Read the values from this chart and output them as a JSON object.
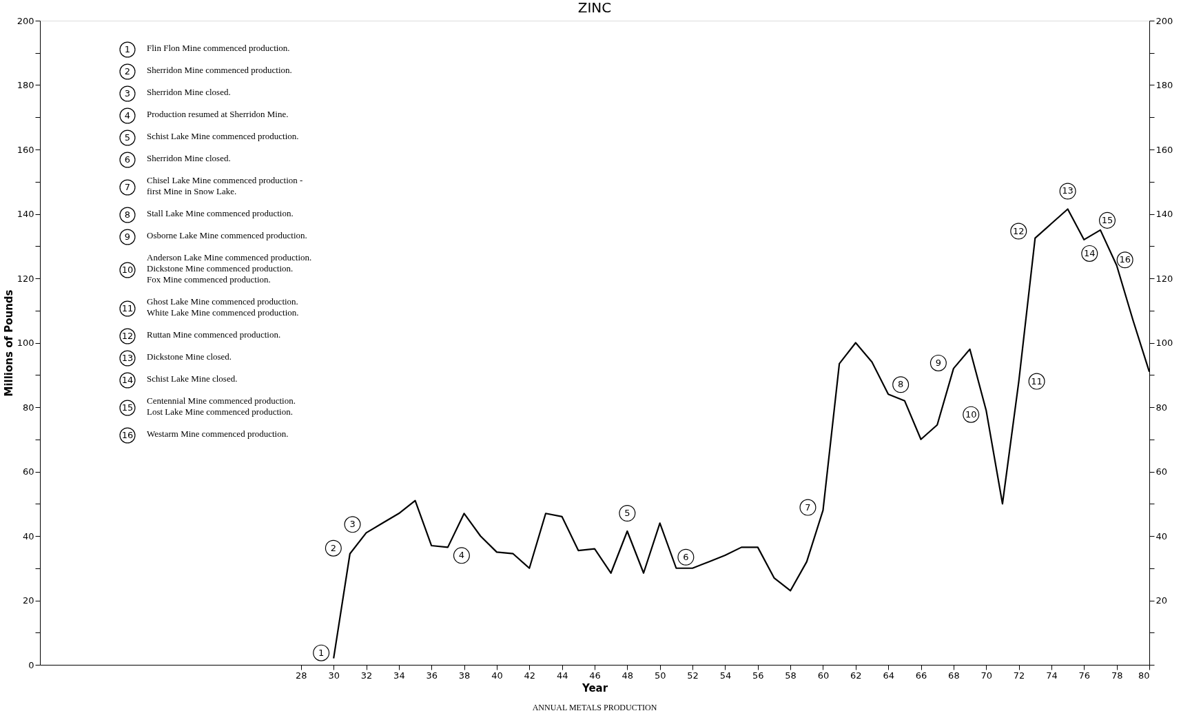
{
  "chart_data": {
    "type": "line",
    "title": "ZINC",
    "xlabel": "Year",
    "ylabel": "Millions of Pounds",
    "x": [
      30,
      31,
      32,
      33,
      34,
      35,
      36,
      37,
      38,
      39,
      40,
      41,
      42,
      43,
      44,
      45,
      46,
      47,
      48,
      49,
      50,
      51,
      52,
      53,
      54,
      55,
      56,
      57,
      58,
      59,
      60,
      61,
      62,
      63,
      64,
      65,
      66,
      67,
      68,
      69,
      70,
      71,
      72,
      73,
      74,
      75,
      76,
      77,
      78,
      79,
      80
    ],
    "series": [
      {
        "color": "#000000",
        "values": [
          2,
          34.5,
          41,
          44,
          47,
          51,
          37,
          36.5,
          47,
          40,
          35,
          34.5,
          30,
          47,
          46,
          35.5,
          36,
          28.5,
          41.5,
          28.5,
          44,
          30,
          30,
          32,
          34,
          36.5,
          36.5,
          27,
          23,
          32,
          48,
          93.5,
          100,
          94,
          84,
          82,
          70,
          74.5,
          92,
          98,
          79,
          50,
          88,
          132.5,
          137,
          141.5,
          132,
          135,
          124,
          107,
          91
        ]
      }
    ],
    "xlim": [
      12,
      80
    ],
    "xticks": [
      28,
      30,
      32,
      34,
      36,
      38,
      40,
      42,
      44,
      46,
      48,
      50,
      52,
      54,
      56,
      58,
      60,
      62,
      64,
      66,
      68,
      70,
      72,
      74,
      76,
      78,
      80
    ],
    "ylim": [
      0,
      200
    ],
    "yticks": [
      0,
      {
        "value": 10,
        "label": null
      },
      20,
      {
        "value": 30,
        "label": null
      },
      40,
      {
        "value": 50,
        "label": null
      },
      60,
      {
        "value": 70,
        "label": null
      },
      80,
      {
        "value": 90,
        "label": null
      },
      100,
      {
        "value": 110,
        "label": null
      },
      120,
      {
        "value": 130,
        "label": null
      },
      140,
      {
        "value": 150,
        "label": null
      },
      160,
      {
        "value": 170,
        "label": null
      },
      180,
      {
        "value": 190,
        "label": null
      },
      200
    ],
    "y2lim": [
      0,
      200
    ],
    "y2ticks": [
      {
        "value": 0,
        "label": null
      },
      {
        "value": 10,
        "label": null
      },
      20,
      {
        "value": 30,
        "label": null
      },
      40,
      {
        "value": 50,
        "label": null
      },
      60,
      {
        "value": 70,
        "label": null
      },
      80,
      {
        "value": 90,
        "label": null
      },
      100,
      {
        "value": 110,
        "label": null
      },
      120,
      {
        "value": 130,
        "label": null
      },
      140,
      {
        "value": 150,
        "label": null
      },
      160,
      {
        "value": 170,
        "label": null
      },
      180,
      {
        "value": 190,
        "label": null
      },
      200
    ],
    "grid": false,
    "marker": "none",
    "line_style": "solid",
    "annotations": [
      {
        "text": "1",
        "x": 30,
        "y": 2
      },
      {
        "text": "2",
        "x": 31,
        "y": 34.5
      },
      {
        "text": "3",
        "x": 32,
        "y": 41
      },
      {
        "text": "4",
        "x": 37,
        "y": 36.5
      },
      {
        "text": "5",
        "x": 48,
        "y": 41.5
      },
      {
        "text": "6",
        "x": 51,
        "y": 30
      },
      {
        "text": "7",
        "x": 60,
        "y": 48
      },
      {
        "text": "8",
        "x": 64,
        "y": 84
      },
      {
        "text": "9",
        "x": 68,
        "y": 92
      },
      {
        "text": "10",
        "x": 70,
        "y": 79
      },
      {
        "text": "11",
        "x": 72,
        "y": 88
      },
      {
        "text": "12",
        "x": 73,
        "y": 132.5
      },
      {
        "text": "13",
        "x": 75,
        "y": 141.5
      },
      {
        "text": "14",
        "x": 76,
        "y": 132
      },
      {
        "text": "15",
        "x": 77,
        "y": 135
      },
      {
        "text": "16",
        "x": 78,
        "y": 124
      },
      "Flin Flon Mine commenced production.",
      "Sherridon Mine commenced production.",
      "Sherridon Mine closed.",
      "Production resumed at Sherridon Mine.",
      "Schist Lake Mine commenced production.",
      "Sherridon Mine closed.",
      "Chisel Lake Mine commenced production -\nfirst Mine in Snow Lake.",
      "Stall Lake Mine commenced production.",
      "Osborne Lake Mine commenced production.",
      "Anderson Lake Mine commenced production.\nDickstone Mine commenced production.\nFox Mine commenced production.",
      "Ghost Lake Mine commenced production.\nWhite Lake Mine commenced production.",
      "Ruttan Mine commenced production.",
      "Dickstone Mine closed.",
      "Schist Lake Mine closed.",
      "Centennial Mine commenced production.\nLost Lake Mine commenced production.",
      "Westarm Mine commenced production.",
      "ANNUAL METALS PRODUCTION"
    ]
  }
}
